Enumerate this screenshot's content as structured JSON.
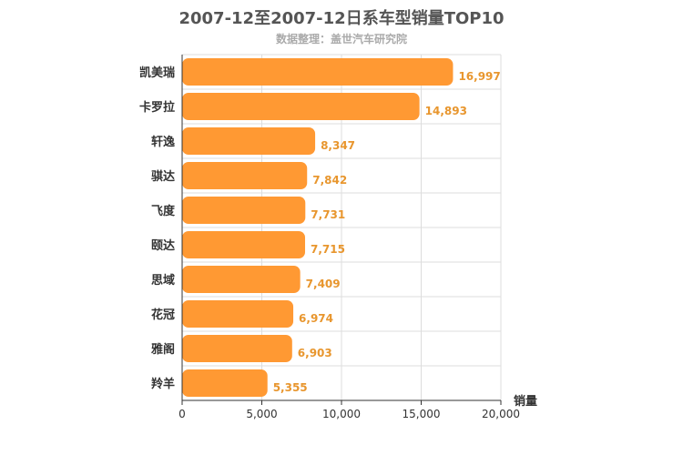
{
  "header": {
    "title": "2007-12至2007-12日系车型销量TOP10",
    "subtitle": "数据整理：盖世汽车研究院"
  },
  "colors": {
    "bar": "#FF9933",
    "value_label": "#E8962E",
    "grid": "#dddddd",
    "axis": "#333333"
  },
  "chart_data": {
    "type": "bar",
    "orientation": "horizontal",
    "title": "2007-12至2007-12日系车型销量TOP10",
    "subtitle": "数据整理：盖世汽车研究院",
    "xlabel": "销量",
    "ylabel": "",
    "categories": [
      "凯美瑞",
      "卡罗拉",
      "轩逸",
      "骐达",
      "飞度",
      "颐达",
      "思域",
      "花冠",
      "雅阁",
      "羚羊"
    ],
    "values": [
      16997,
      14893,
      8347,
      7842,
      7731,
      7715,
      7409,
      6974,
      6903,
      5355
    ],
    "value_labels": [
      "16,997",
      "14,893",
      "8,347",
      "7,842",
      "7,731",
      "7,715",
      "7,409",
      "6,974",
      "6,903",
      "5,355"
    ],
    "xlim": [
      0,
      20000
    ],
    "xticks": [
      0,
      5000,
      10000,
      15000,
      20000
    ],
    "xtick_labels": [
      "0",
      "5,000",
      "10,000",
      "15,000",
      "20,000"
    ],
    "grid": true,
    "legend": "none"
  }
}
